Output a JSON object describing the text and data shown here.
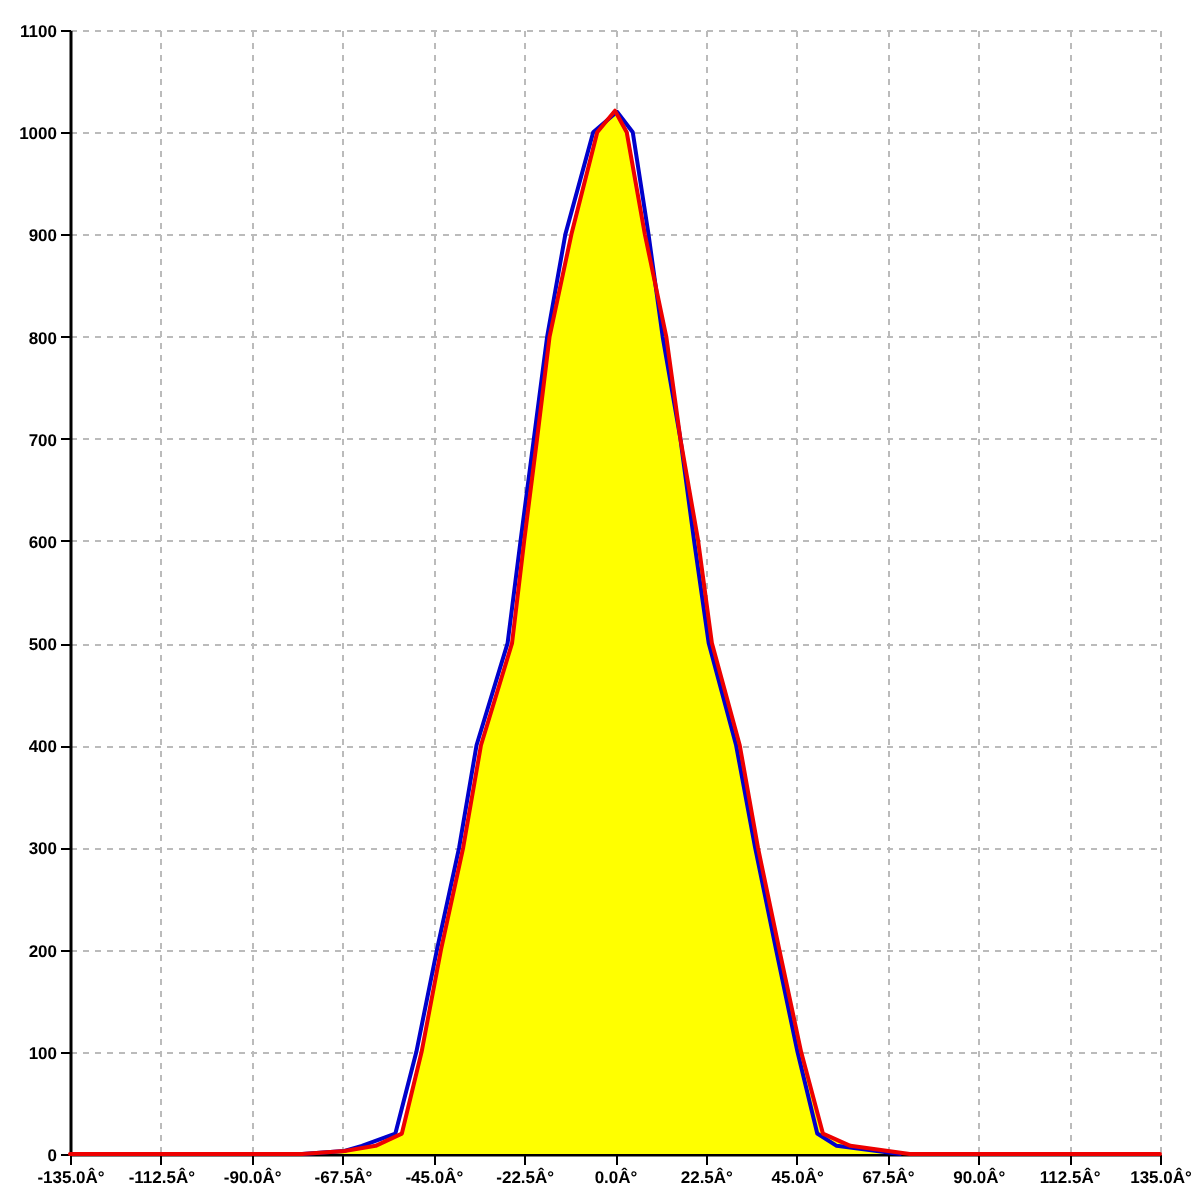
{
  "chart_data": {
    "type": "line",
    "xlim": [
      -135,
      135
    ],
    "xticks": [
      {
        "value": -135,
        "label": "-135.0Â°"
      },
      {
        "value": -112.5,
        "label": "-112.5Â°"
      },
      {
        "value": -90,
        "label": "-90.0Â°"
      },
      {
        "value": -67.5,
        "label": "-67.5Â°"
      },
      {
        "value": -45,
        "label": "-45.0Â°"
      },
      {
        "value": -22.5,
        "label": "-22.5Â°"
      },
      {
        "value": 0,
        "label": "0.0Â°"
      },
      {
        "value": 22.5,
        "label": "22.5Â°"
      },
      {
        "value": 45,
        "label": "45.0Â°"
      },
      {
        "value": 67.5,
        "label": "67.5Â°"
      },
      {
        "value": 90,
        "label": "90.0Â°"
      },
      {
        "value": 112.5,
        "label": "112.5Â°"
      },
      {
        "value": 135,
        "label": "135.0Â°"
      }
    ],
    "ylim": [
      0,
      1100
    ],
    "yticks": [
      0,
      100,
      200,
      300,
      400,
      500,
      600,
      700,
      800,
      900,
      1000,
      1100
    ],
    "grid": true,
    "series": [
      {
        "type": "area",
        "color": "#ffff00",
        "x": [
          -77.5,
          -67,
          -59.3,
          -52.8,
          -47.9,
          -43.1,
          -37.6,
          -33.2,
          -25.5,
          -22.5,
          -19.3,
          -16.2,
          -10.8,
          -4.4,
          0,
          2.9,
          7.4,
          12.7,
          16.2,
          20.6,
          24,
          30.9,
          35.4,
          40.7,
          46.1,
          51.5,
          58.3,
          73
        ],
        "values": [
          0,
          3,
          8,
          20,
          100,
          200,
          300,
          400,
          500,
          600,
          700,
          800,
          900,
          1000,
          1021,
          1000,
          900,
          800,
          700,
          600,
          500,
          400,
          300,
          200,
          100,
          20,
          8,
          0
        ]
      },
      {
        "color": "#0000cc",
        "x": [
          -77.5,
          -67,
          -62.7,
          -54.4,
          -49.2,
          -44.1,
          -38.6,
          -34.3,
          -26.6,
          -23.4,
          -20.1,
          -16.8,
          -12.3,
          -5.4,
          0.5,
          4.4,
          8.3,
          11.8,
          16.2,
          19.6,
          23.2,
          30,
          34.7,
          39.9,
          45.2,
          50.1,
          54.9,
          70.6
        ],
        "values": [
          0,
          3,
          8,
          20,
          100,
          200,
          300,
          400,
          500,
          600,
          700,
          800,
          900,
          1000,
          1020,
          1000,
          900,
          800,
          700,
          600,
          500,
          400,
          300,
          200,
          100,
          20,
          8,
          0
        ]
      },
      {
        "color": "#ee0000",
        "x": [
          -135,
          -77.5,
          -67,
          -59.3,
          -52.8,
          -47.9,
          -43.1,
          -37.6,
          -33.2,
          -25.5,
          -22.5,
          -19.3,
          -16.2,
          -10.8,
          -4.4,
          0,
          2.9,
          7.4,
          12.7,
          16.2,
          20.6,
          24,
          30.9,
          35.4,
          40.7,
          46.1,
          51.5,
          58.3,
          73,
          135
        ],
        "values": [
          0,
          0,
          3,
          8,
          20,
          100,
          200,
          300,
          400,
          500,
          600,
          700,
          800,
          900,
          1000,
          1021,
          1000,
          900,
          800,
          700,
          600,
          500,
          400,
          300,
          200,
          100,
          20,
          8,
          0,
          0
        ]
      }
    ]
  }
}
